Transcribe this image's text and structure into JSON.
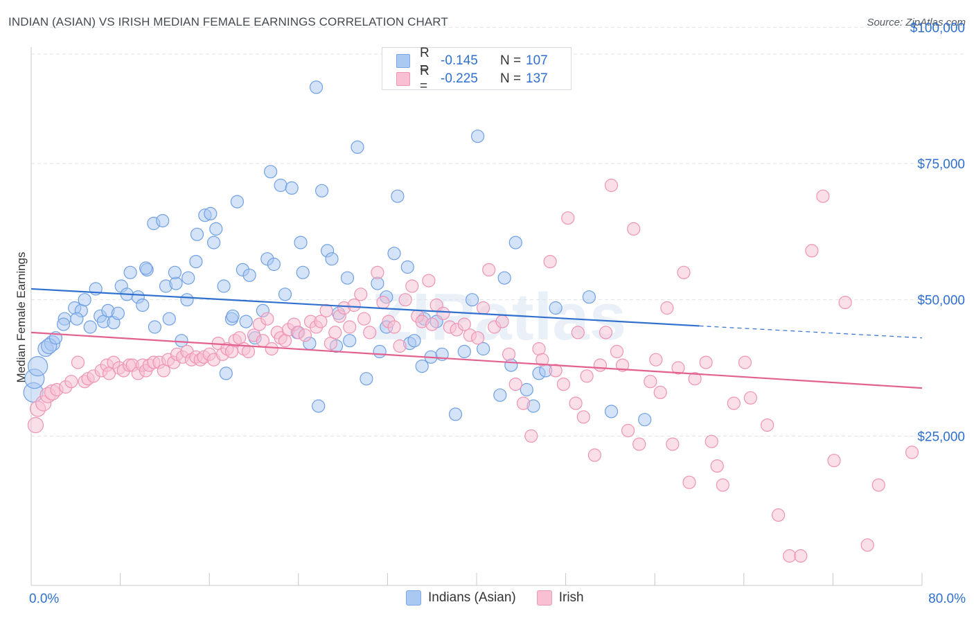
{
  "title": "INDIAN (ASIAN) VS IRISH MEDIAN FEMALE EARNINGS CORRELATION CHART",
  "source": "Source: ZipAtlas.com",
  "watermark": "ZIPatlas",
  "legend": {
    "series": [
      {
        "r_label": "R =",
        "r_value": "-0.145",
        "n_label": "N =",
        "n_value": "107",
        "fill": "#aac8f2",
        "stroke": "#7aa8e6"
      },
      {
        "r_label": "R =",
        "r_value": "-0.225",
        "n_label": "N =",
        "n_value": "137",
        "fill": "#f8c0d2",
        "stroke": "#ee97b6"
      }
    ]
  },
  "bottom_legend": [
    "Indians (Asian)",
    "Irish"
  ],
  "chart_data": {
    "type": "scatter",
    "title": "INDIAN (ASIAN) VS IRISH MEDIAN FEMALE EARNINGS CORRELATION CHART",
    "xlabel": "",
    "ylabel": "Median Female Earnings",
    "xlim": [
      0,
      80
    ],
    "ylim": [
      0,
      105000
    ],
    "x_tick_labels": [
      {
        "value": 0,
        "label": "0.0%"
      },
      {
        "value": 80,
        "label": "80.0%"
      }
    ],
    "y_ticks": [
      {
        "value": 25000,
        "label": "$25,000"
      },
      {
        "value": 50000,
        "label": "$50,000"
      },
      {
        "value": 75000,
        "label": "$75,000"
      },
      {
        "value": 100000,
        "label": "$100,000"
      }
    ],
    "series": [
      {
        "name": "Indians (Asian)",
        "color": "#6fa0e4",
        "fill": "#a9c7f1",
        "trend": {
          "x1": 0,
          "y1": 52000,
          "x2": 60,
          "y2": 45200,
          "dash_to_x": 80,
          "dash_to_y": 43000,
          "color": "#2f70cf"
        },
        "points": [
          [
            0.2,
            33000
          ],
          [
            0.3,
            35500
          ],
          [
            0.6,
            37800
          ],
          [
            1.3,
            41000
          ],
          [
            1.9,
            42000
          ],
          [
            1.6,
            41500
          ],
          [
            2.2,
            43000
          ],
          [
            3.0,
            46500
          ],
          [
            2.9,
            45500
          ],
          [
            3.9,
            48500
          ],
          [
            4.5,
            48000
          ],
          [
            4.8,
            50000
          ],
          [
            4.1,
            46500
          ],
          [
            5.3,
            45000
          ],
          [
            5.8,
            52000
          ],
          [
            6.2,
            47000
          ],
          [
            6.5,
            46000
          ],
          [
            6.9,
            48000
          ],
          [
            7.4,
            45800
          ],
          [
            7.8,
            47500
          ],
          [
            8.1,
            52500
          ],
          [
            8.6,
            51000
          ],
          [
            8.9,
            55000
          ],
          [
            9.6,
            50500
          ],
          [
            10.0,
            49000
          ],
          [
            10.4,
            55500
          ],
          [
            10.3,
            55800
          ],
          [
            11.1,
            45000
          ],
          [
            11.0,
            64000
          ],
          [
            11.8,
            64500
          ],
          [
            12.1,
            52500
          ],
          [
            12.4,
            46500
          ],
          [
            13.0,
            53000
          ],
          [
            12.9,
            55000
          ],
          [
            13.5,
            42500
          ],
          [
            14.0,
            50000
          ],
          [
            14.1,
            54000
          ],
          [
            14.8,
            57000
          ],
          [
            14.9,
            62000
          ],
          [
            15.6,
            65500
          ],
          [
            16.1,
            65800
          ],
          [
            16.4,
            60500
          ],
          [
            16.6,
            63000
          ],
          [
            17.3,
            52500
          ],
          [
            17.5,
            36500
          ],
          [
            18.0,
            46500
          ],
          [
            18.1,
            47000
          ],
          [
            18.5,
            68000
          ],
          [
            19.0,
            55500
          ],
          [
            19.3,
            46000
          ],
          [
            19.6,
            54500
          ],
          [
            20.1,
            43000
          ],
          [
            20.8,
            48000
          ],
          [
            21.2,
            57500
          ],
          [
            21.5,
            73500
          ],
          [
            21.8,
            56500
          ],
          [
            22.4,
            71000
          ],
          [
            22.8,
            51000
          ],
          [
            23.4,
            70500
          ],
          [
            23.9,
            44000
          ],
          [
            24.2,
            60500
          ],
          [
            24.4,
            55000
          ],
          [
            25.0,
            42000
          ],
          [
            25.6,
            89000
          ],
          [
            25.8,
            30500
          ],
          [
            26.1,
            70000
          ],
          [
            26.6,
            59000
          ],
          [
            27.0,
            57500
          ],
          [
            27.4,
            41500
          ],
          [
            27.6,
            47500
          ],
          [
            28.4,
            54000
          ],
          [
            28.6,
            42500
          ],
          [
            29.3,
            78000
          ],
          [
            30.1,
            35500
          ],
          [
            31.1,
            53000
          ],
          [
            31.3,
            40500
          ],
          [
            31.9,
            50500
          ],
          [
            31.9,
            45000
          ],
          [
            32.6,
            58500
          ],
          [
            32.9,
            69000
          ],
          [
            33.8,
            56000
          ],
          [
            34.0,
            42000
          ],
          [
            34.4,
            42500
          ],
          [
            35.1,
            37800
          ],
          [
            35.3,
            46500
          ],
          [
            35.9,
            39500
          ],
          [
            36.4,
            46000
          ],
          [
            36.9,
            40000
          ],
          [
            38.1,
            29000
          ],
          [
            38.9,
            40500
          ],
          [
            39.6,
            50000
          ],
          [
            40.1,
            80000
          ],
          [
            40.6,
            41000
          ],
          [
            42.1,
            32500
          ],
          [
            42.5,
            54000
          ],
          [
            43.1,
            38000
          ],
          [
            43.5,
            60500
          ],
          [
            44.5,
            33500
          ],
          [
            45.1,
            30500
          ],
          [
            45.6,
            36500
          ],
          [
            46.2,
            37000
          ],
          [
            47.1,
            48500
          ],
          [
            50.1,
            50500
          ],
          [
            52.1,
            29500
          ],
          [
            55.1,
            28000
          ]
        ]
      },
      {
        "name": "Irish",
        "color": "#ee93b4",
        "fill": "#f7bfd1",
        "trend": {
          "x1": 0,
          "y1": 44000,
          "x2": 80,
          "y2": 33800,
          "color": "#e3608f"
        },
        "points": [
          [
            0.4,
            27000
          ],
          [
            0.6,
            30000
          ],
          [
            1.1,
            31000
          ],
          [
            1.5,
            32500
          ],
          [
            1.9,
            33000
          ],
          [
            2.3,
            33500
          ],
          [
            3.1,
            34000
          ],
          [
            3.6,
            35000
          ],
          [
            4.2,
            38500
          ],
          [
            4.8,
            35000
          ],
          [
            5.1,
            35500
          ],
          [
            5.6,
            36000
          ],
          [
            6.3,
            37000
          ],
          [
            6.8,
            38000
          ],
          [
            7.0,
            36500
          ],
          [
            7.4,
            38500
          ],
          [
            7.9,
            37500
          ],
          [
            8.3,
            37000
          ],
          [
            8.8,
            38000
          ],
          [
            9.1,
            38000
          ],
          [
            9.6,
            36500
          ],
          [
            10.0,
            38000
          ],
          [
            10.3,
            37000
          ],
          [
            10.6,
            38000
          ],
          [
            11.0,
            38500
          ],
          [
            11.5,
            38500
          ],
          [
            11.9,
            37000
          ],
          [
            12.3,
            39000
          ],
          [
            12.8,
            38500
          ],
          [
            13.1,
            40000
          ],
          [
            13.6,
            39500
          ],
          [
            14.0,
            40500
          ],
          [
            14.4,
            39000
          ],
          [
            14.8,
            39500
          ],
          [
            15.2,
            39000
          ],
          [
            15.5,
            39500
          ],
          [
            16.0,
            40000
          ],
          [
            16.4,
            39000
          ],
          [
            16.8,
            42000
          ],
          [
            17.2,
            40000
          ],
          [
            17.6,
            41000
          ],
          [
            18.0,
            40500
          ],
          [
            18.3,
            42500
          ],
          [
            18.7,
            43000
          ],
          [
            19.1,
            41000
          ],
          [
            19.5,
            40500
          ],
          [
            20.0,
            43500
          ],
          [
            20.5,
            45500
          ],
          [
            20.8,
            42500
          ],
          [
            21.2,
            46500
          ],
          [
            21.6,
            41000
          ],
          [
            22.1,
            44000
          ],
          [
            22.4,
            43000
          ],
          [
            22.8,
            42500
          ],
          [
            23.1,
            44500
          ],
          [
            23.6,
            45500
          ],
          [
            24.0,
            44000
          ],
          [
            24.6,
            43500
          ],
          [
            25.1,
            46000
          ],
          [
            25.6,
            45000
          ],
          [
            26.0,
            46000
          ],
          [
            26.5,
            48000
          ],
          [
            26.9,
            42000
          ],
          [
            27.3,
            44000
          ],
          [
            27.7,
            47000
          ],
          [
            28.1,
            48500
          ],
          [
            28.6,
            45000
          ],
          [
            29.0,
            49000
          ],
          [
            29.6,
            51000
          ],
          [
            29.9,
            46500
          ],
          [
            30.4,
            44000
          ],
          [
            31.1,
            55000
          ],
          [
            31.6,
            49500
          ],
          [
            32.1,
            46000
          ],
          [
            32.6,
            45000
          ],
          [
            33.1,
            41500
          ],
          [
            33.6,
            50000
          ],
          [
            34.2,
            52500
          ],
          [
            34.7,
            47000
          ],
          [
            35.1,
            46000
          ],
          [
            35.7,
            53500
          ],
          [
            36.0,
            45500
          ],
          [
            36.4,
            49000
          ],
          [
            37.0,
            47500
          ],
          [
            37.6,
            45000
          ],
          [
            38.2,
            44500
          ],
          [
            38.9,
            45500
          ],
          [
            39.4,
            43500
          ],
          [
            40.1,
            43000
          ],
          [
            40.6,
            48500
          ],
          [
            41.1,
            55500
          ],
          [
            41.6,
            45000
          ],
          [
            42.3,
            46000
          ],
          [
            42.9,
            40000
          ],
          [
            43.5,
            34500
          ],
          [
            44.2,
            31000
          ],
          [
            44.9,
            25000
          ],
          [
            45.6,
            41000
          ],
          [
            45.9,
            39000
          ],
          [
            46.6,
            57000
          ],
          [
            47.1,
            37000
          ],
          [
            47.8,
            34500
          ],
          [
            48.2,
            65000
          ],
          [
            48.9,
            31000
          ],
          [
            49.1,
            44000
          ],
          [
            49.6,
            28500
          ],
          [
            49.9,
            36000
          ],
          [
            50.6,
            21500
          ],
          [
            51.1,
            38000
          ],
          [
            51.6,
            44000
          ],
          [
            52.1,
            71000
          ],
          [
            52.6,
            40500
          ],
          [
            53.1,
            38000
          ],
          [
            53.6,
            26000
          ],
          [
            54.1,
            63000
          ],
          [
            54.6,
            23500
          ],
          [
            55.6,
            35000
          ],
          [
            56.1,
            39000
          ],
          [
            56.5,
            33000
          ],
          [
            57.1,
            48500
          ],
          [
            57.6,
            23500
          ],
          [
            58.1,
            37500
          ],
          [
            58.6,
            55000
          ],
          [
            59.1,
            16500
          ],
          [
            59.6,
            35500
          ],
          [
            60.6,
            38500
          ],
          [
            61.1,
            24000
          ],
          [
            61.6,
            19500
          ],
          [
            62.1,
            16000
          ],
          [
            63.1,
            31000
          ],
          [
            64.1,
            38500
          ],
          [
            64.6,
            32000
          ],
          [
            66.1,
            27000
          ],
          [
            67.1,
            10500
          ],
          [
            68.1,
            3000
          ],
          [
            69.1,
            3000
          ],
          [
            70.1,
            59000
          ],
          [
            71.1,
            69000
          ],
          [
            72.1,
            20500
          ],
          [
            73.1,
            49500
          ],
          [
            75.1,
            5000
          ],
          [
            76.1,
            16000
          ],
          [
            79.1,
            22000
          ]
        ]
      }
    ]
  }
}
